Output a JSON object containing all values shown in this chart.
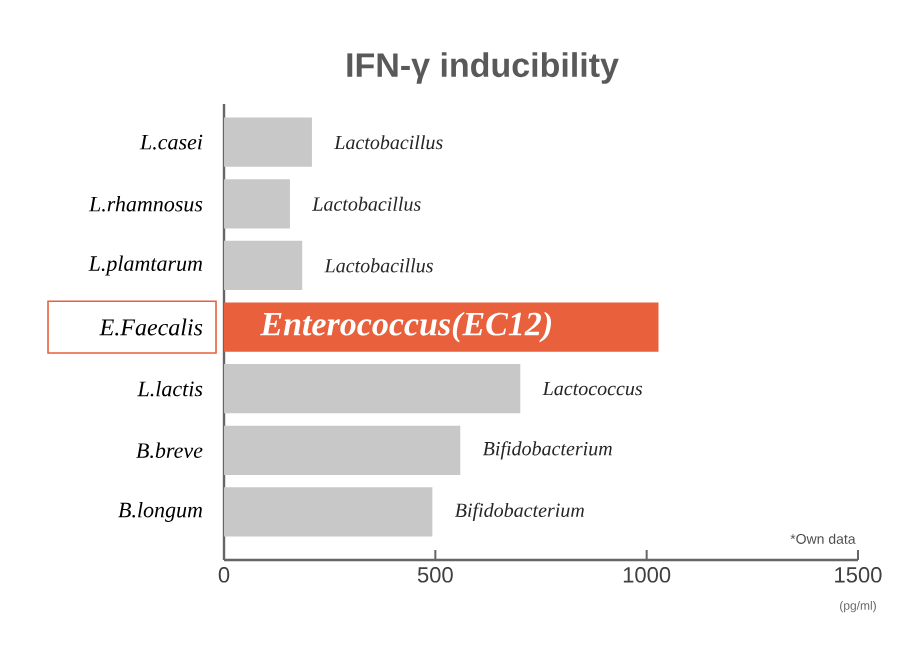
{
  "chart_data": {
    "type": "bar",
    "orientation": "horizontal",
    "title": "IFN-γ inducibility",
    "xlabel": "(pg/ml)",
    "categories": [
      "L.casei",
      "L.rhamnosus",
      "L.plamtarum",
      "E.Faecalis",
      "L.lactis",
      "B.breve",
      "B.longum"
    ],
    "values": [
      208,
      156,
      185,
      1028,
      701,
      559,
      493
    ],
    "colors": [
      "#c8c8c8",
      "#c8c8c8",
      "#c8c8c8",
      "#e8603c",
      "#c8c8c8",
      "#c8c8c8",
      "#c8c8c8"
    ],
    "xlim": [
      0,
      1500
    ],
    "xticks": [
      0,
      500,
      1000,
      1500
    ],
    "annotations": [
      "Lactobacillus",
      "Lactobacillus",
      "Lactobacillus",
      "Enterococcus(EC12)",
      "Lactococcus",
      "Bifidobacterium",
      "Bifidobacterium",
      "*Own data"
    ]
  }
}
